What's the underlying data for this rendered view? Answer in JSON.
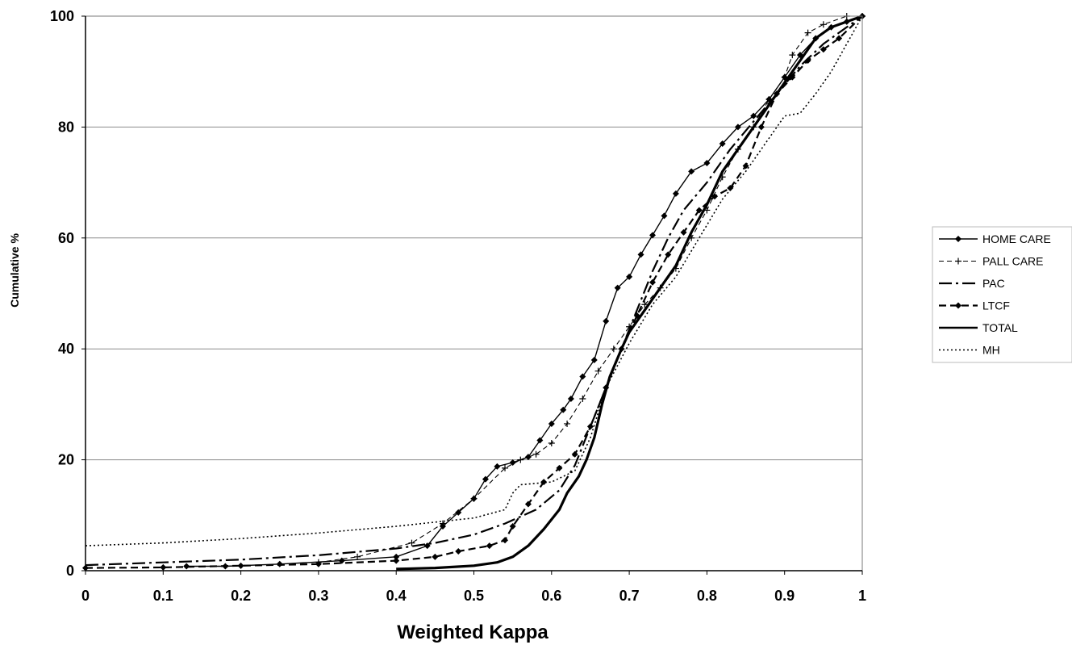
{
  "chart_data": {
    "type": "line",
    "title": "",
    "xlabel": "Weighted Kappa",
    "ylabel": "Cumulative %",
    "xlim": [
      0,
      1
    ],
    "ylim": [
      0,
      100
    ],
    "x_ticks": [
      "0",
      "0.1",
      "0.2",
      "0.3",
      "0.4",
      "0.5",
      "0.6",
      "0.7",
      "0.8",
      "0.9",
      "1"
    ],
    "y_ticks": [
      "0",
      "20",
      "40",
      "60",
      "80",
      "100"
    ],
    "grid": "horizontal",
    "legend_position": "right",
    "series": [
      {
        "name": "HOME CARE",
        "style": "solid-diamond",
        "points": [
          [
            0.13,
            0.8
          ],
          [
            0.18,
            0.8
          ],
          [
            0.25,
            1.2
          ],
          [
            0.33,
            1.8
          ],
          [
            0.4,
            2.5
          ],
          [
            0.44,
            4.5
          ],
          [
            0.46,
            8.0
          ],
          [
            0.48,
            10.5
          ],
          [
            0.5,
            13.0
          ],
          [
            0.515,
            16.5
          ],
          [
            0.53,
            18.8
          ],
          [
            0.55,
            19.5
          ],
          [
            0.57,
            20.5
          ],
          [
            0.585,
            23.5
          ],
          [
            0.6,
            26.5
          ],
          [
            0.615,
            29.0
          ],
          [
            0.625,
            31.0
          ],
          [
            0.64,
            35.0
          ],
          [
            0.655,
            38.0
          ],
          [
            0.67,
            45.0
          ],
          [
            0.685,
            51.0
          ],
          [
            0.7,
            53.0
          ],
          [
            0.715,
            57.0
          ],
          [
            0.73,
            60.5
          ],
          [
            0.745,
            64.0
          ],
          [
            0.76,
            68.0
          ],
          [
            0.78,
            72.0
          ],
          [
            0.8,
            73.5
          ],
          [
            0.82,
            77.0
          ],
          [
            0.84,
            80.0
          ],
          [
            0.86,
            82.0
          ],
          [
            0.88,
            85.0
          ],
          [
            0.9,
            89.0
          ],
          [
            0.92,
            93.0
          ],
          [
            0.94,
            96.0
          ],
          [
            0.96,
            98.0
          ],
          [
            0.98,
            99.0
          ],
          [
            1.0,
            100.0
          ]
        ]
      },
      {
        "name": "PALL CARE",
        "style": "dashed-cross",
        "points": [
          [
            0.3,
            1.5
          ],
          [
            0.35,
            2.5
          ],
          [
            0.42,
            5.0
          ],
          [
            0.46,
            8.5
          ],
          [
            0.5,
            13.0
          ],
          [
            0.54,
            18.5
          ],
          [
            0.56,
            20.0
          ],
          [
            0.58,
            21.0
          ],
          [
            0.6,
            23.0
          ],
          [
            0.62,
            26.5
          ],
          [
            0.64,
            31.0
          ],
          [
            0.66,
            36.0
          ],
          [
            0.68,
            40.0
          ],
          [
            0.7,
            44.0
          ],
          [
            0.72,
            48.0
          ],
          [
            0.74,
            51.0
          ],
          [
            0.76,
            54.5
          ],
          [
            0.78,
            60.0
          ],
          [
            0.8,
            65.0
          ],
          [
            0.82,
            71.0
          ],
          [
            0.84,
            76.0
          ],
          [
            0.86,
            80.0
          ],
          [
            0.88,
            85.0
          ],
          [
            0.9,
            89.0
          ],
          [
            0.91,
            93.0
          ],
          [
            0.93,
            97.0
          ],
          [
            0.95,
            98.5
          ],
          [
            0.98,
            100.0
          ],
          [
            1.0,
            100.0
          ]
        ]
      },
      {
        "name": "PAC",
        "style": "dash-dot",
        "points": [
          [
            0.0,
            1.0
          ],
          [
            0.1,
            1.5
          ],
          [
            0.2,
            2.0
          ],
          [
            0.3,
            2.8
          ],
          [
            0.4,
            4.0
          ],
          [
            0.45,
            5.0
          ],
          [
            0.5,
            6.5
          ],
          [
            0.54,
            8.5
          ],
          [
            0.58,
            11.0
          ],
          [
            0.61,
            14.5
          ],
          [
            0.63,
            19.0
          ],
          [
            0.65,
            26.0
          ],
          [
            0.67,
            33.0
          ],
          [
            0.69,
            40.0
          ],
          [
            0.71,
            47.0
          ],
          [
            0.73,
            54.0
          ],
          [
            0.75,
            60.0
          ],
          [
            0.77,
            65.0
          ],
          [
            0.8,
            70.0
          ],
          [
            0.83,
            76.0
          ],
          [
            0.86,
            81.0
          ],
          [
            0.89,
            86.0
          ],
          [
            0.92,
            91.0
          ],
          [
            0.95,
            95.0
          ],
          [
            0.98,
            98.0
          ],
          [
            1.0,
            100.0
          ]
        ]
      },
      {
        "name": "LTCF",
        "style": "dashed-diamond",
        "points": [
          [
            0.0,
            0.5
          ],
          [
            0.1,
            0.6
          ],
          [
            0.2,
            0.9
          ],
          [
            0.3,
            1.2
          ],
          [
            0.4,
            1.8
          ],
          [
            0.45,
            2.5
          ],
          [
            0.48,
            3.5
          ],
          [
            0.52,
            4.5
          ],
          [
            0.54,
            5.5
          ],
          [
            0.55,
            8.0
          ],
          [
            0.57,
            12.0
          ],
          [
            0.59,
            16.0
          ],
          [
            0.61,
            18.5
          ],
          [
            0.63,
            21.0
          ],
          [
            0.65,
            26.0
          ],
          [
            0.67,
            33.0
          ],
          [
            0.69,
            40.0
          ],
          [
            0.71,
            46.0
          ],
          [
            0.73,
            52.0
          ],
          [
            0.75,
            57.0
          ],
          [
            0.77,
            61.0
          ],
          [
            0.79,
            65.0
          ],
          [
            0.81,
            67.5
          ],
          [
            0.83,
            69.0
          ],
          [
            0.85,
            73.0
          ],
          [
            0.87,
            80.0
          ],
          [
            0.89,
            86.0
          ],
          [
            0.91,
            89.0
          ],
          [
            0.93,
            92.0
          ],
          [
            0.95,
            94.0
          ],
          [
            0.97,
            96.0
          ],
          [
            1.0,
            100.0
          ]
        ]
      },
      {
        "name": "TOTAL",
        "style": "solid-thick",
        "points": [
          [
            0.4,
            0.3
          ],
          [
            0.45,
            0.5
          ],
          [
            0.5,
            0.9
          ],
          [
            0.53,
            1.5
          ],
          [
            0.55,
            2.5
          ],
          [
            0.57,
            4.5
          ],
          [
            0.59,
            7.5
          ],
          [
            0.61,
            11.0
          ],
          [
            0.62,
            14.0
          ],
          [
            0.635,
            17.0
          ],
          [
            0.645,
            20.0
          ],
          [
            0.655,
            24.0
          ],
          [
            0.665,
            30.0
          ],
          [
            0.675,
            35.0
          ],
          [
            0.69,
            40.0
          ],
          [
            0.7,
            43.0
          ],
          [
            0.72,
            47.0
          ],
          [
            0.74,
            51.0
          ],
          [
            0.76,
            55.0
          ],
          [
            0.78,
            61.0
          ],
          [
            0.8,
            66.0
          ],
          [
            0.82,
            72.0
          ],
          [
            0.84,
            76.0
          ],
          [
            0.86,
            80.0
          ],
          [
            0.88,
            84.0
          ],
          [
            0.9,
            88.0
          ],
          [
            0.92,
            92.0
          ],
          [
            0.94,
            96.0
          ],
          [
            0.96,
            98.0
          ],
          [
            0.98,
            99.0
          ],
          [
            1.0,
            100.0
          ]
        ]
      },
      {
        "name": "MH",
        "style": "dotted",
        "points": [
          [
            0.0,
            4.5
          ],
          [
            0.1,
            5.0
          ],
          [
            0.2,
            5.8
          ],
          [
            0.3,
            6.8
          ],
          [
            0.4,
            8.0
          ],
          [
            0.5,
            9.5
          ],
          [
            0.54,
            11.0
          ],
          [
            0.55,
            14.0
          ],
          [
            0.56,
            15.5
          ],
          [
            0.6,
            16.0
          ],
          [
            0.63,
            18.0
          ],
          [
            0.65,
            24.0
          ],
          [
            0.67,
            33.0
          ],
          [
            0.7,
            41.0
          ],
          [
            0.73,
            48.0
          ],
          [
            0.76,
            53.0
          ],
          [
            0.79,
            60.0
          ],
          [
            0.82,
            67.0
          ],
          [
            0.85,
            72.0
          ],
          [
            0.87,
            76.0
          ],
          [
            0.89,
            80.0
          ],
          [
            0.9,
            82.0
          ],
          [
            0.92,
            82.5
          ],
          [
            0.94,
            86.0
          ],
          [
            0.96,
            90.0
          ],
          [
            0.98,
            95.0
          ],
          [
            1.0,
            100.0
          ]
        ]
      }
    ]
  }
}
